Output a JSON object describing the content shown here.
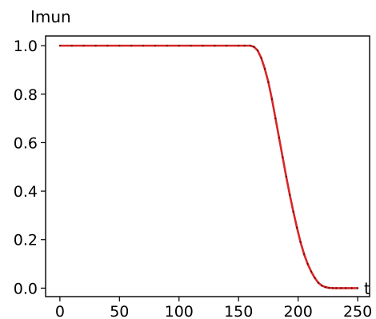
{
  "chart_data": {
    "type": "line",
    "title": "",
    "xlabel": "t",
    "ylabel": "Imun",
    "xlim": [
      -12,
      260
    ],
    "ylim": [
      -0.035,
      1.04
    ],
    "grid": false,
    "legend": "none",
    "x_ticks": [
      0,
      50,
      100,
      150,
      200,
      250
    ],
    "x_tick_labels": [
      "0",
      "50",
      "100",
      "150",
      "200",
      "250"
    ],
    "y_ticks": [
      0.0,
      0.2,
      0.4,
      0.6,
      0.8,
      1.0
    ],
    "y_tick_labels": [
      "0.0",
      "0.2",
      "0.4",
      "0.6",
      "0.8",
      "1.0"
    ],
    "series": [
      {
        "color": "#d62728",
        "marker_color": "#6b0000",
        "x": [
          0,
          10,
          20,
          30,
          40,
          50,
          60,
          70,
          80,
          90,
          100,
          110,
          120,
          130,
          140,
          150,
          155,
          160,
          163,
          166,
          169,
          172,
          175,
          178,
          181,
          184,
          187,
          190,
          193,
          196,
          199,
          202,
          205,
          208,
          211,
          214,
          217,
          220,
          223,
          226,
          229,
          232,
          236,
          240,
          245,
          250
        ],
        "y": [
          1.0,
          1.0,
          1.0,
          1.0,
          1.0,
          1.0,
          1.0,
          1.0,
          1.0,
          1.0,
          1.0,
          1.0,
          1.0,
          1.0,
          1.0,
          1.0,
          1.0,
          1.0,
          0.995,
          0.98,
          0.95,
          0.905,
          0.85,
          0.78,
          0.7,
          0.62,
          0.54,
          0.46,
          0.385,
          0.315,
          0.25,
          0.19,
          0.14,
          0.1,
          0.068,
          0.042,
          0.022,
          0.01,
          0.004,
          0.001,
          0.0,
          0.0,
          0.0,
          0.0,
          0.0,
          0.0
        ]
      }
    ]
  }
}
